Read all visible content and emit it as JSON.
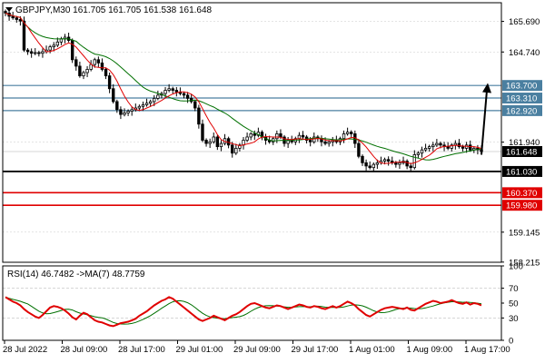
{
  "header": {
    "symbol_line": "GBPJPY,M30  161.705 161.705 161.538 161.648"
  },
  "colors": {
    "background": "#ffffff",
    "frame": "#000000",
    "grid": "#c8c8c8",
    "candle": "#000000",
    "ma_fast": "#e00000",
    "ma_slow": "#007000",
    "resistance": "#4a7fa0",
    "support_black": "#000000",
    "support_red": "#e00000",
    "rsi": "#e00000",
    "rsi_ma": "#007000",
    "current_price_bg": "#000000"
  },
  "chart_data": [
    {
      "type": "candlestick",
      "title": "GBPJPY,M30",
      "ohlc_readout": {
        "open": 161.705,
        "high": 161.705,
        "low": 161.538,
        "close": 161.648
      },
      "ylim": [
        158.21,
        166.27
      ],
      "y_ticks": [
        165.69,
        164.74,
        161.94,
        159.145,
        158.215
      ],
      "y_tick_labels": [
        "165.690",
        "164.740",
        "161.940",
        "159.145",
        "158.215"
      ],
      "current_price": {
        "value": 161.648,
        "label": "161.648"
      },
      "x_ticks": [
        "28 Jul 2022",
        "28 Jul 09:00",
        "28 Jul 17:00",
        "29 Jul 01:00",
        "29 Jul 09:00",
        "29 Jul 17:00",
        "1 Aug 01:00",
        "1 Aug 09:00",
        "1 Aug 17:00"
      ],
      "levels": [
        {
          "value": 163.7,
          "label": "163.700",
          "kind": "resistance"
        },
        {
          "value": 163.31,
          "label": "163.310",
          "kind": "resistance"
        },
        {
          "value": 162.92,
          "label": "162.920",
          "kind": "resistance"
        },
        {
          "value": 161.03,
          "label": "161.030",
          "kind": "support"
        },
        {
          "value": 160.37,
          "label": "160.370",
          "kind": "support-red"
        },
        {
          "value": 159.98,
          "label": "159.980",
          "kind": "support-red"
        }
      ],
      "forecast_arrow": {
        "from_bar": 128,
        "from": 161.55,
        "to": 163.72,
        "direction": "up"
      },
      "closes": [
        165.95,
        165.85,
        165.8,
        165.75,
        165.7,
        164.8,
        164.75,
        164.7,
        164.72,
        164.7,
        164.75,
        164.8,
        164.9,
        164.95,
        165.05,
        165.15,
        165.2,
        165.1,
        164.5,
        164.3,
        164.0,
        164.1,
        164.2,
        164.35,
        164.5,
        164.4,
        164.2,
        164.0,
        163.6,
        163.2,
        162.95,
        162.8,
        162.85,
        162.9,
        162.95,
        163.0,
        163.05,
        163.1,
        163.15,
        163.2,
        163.3,
        163.4,
        163.45,
        163.55,
        163.6,
        163.55,
        163.5,
        163.45,
        163.4,
        163.3,
        163.2,
        163.0,
        162.5,
        162.0,
        161.9,
        161.95,
        162.1,
        161.8,
        161.9,
        162.05,
        161.85,
        161.6,
        161.75,
        161.85,
        162.0,
        162.1,
        162.2,
        162.15,
        162.25,
        162.1,
        162.0,
        161.95,
        162.05,
        162.2,
        162.1,
        161.9,
        162.0,
        161.95,
        162.05,
        162.15,
        162.1,
        162.0,
        161.95,
        162.1,
        162.05,
        161.95,
        161.9,
        161.95,
        162.0,
        161.95,
        162.05,
        162.2,
        162.25,
        162.2,
        161.9,
        161.5,
        161.3,
        161.2,
        161.15,
        161.25,
        161.3,
        161.35,
        161.4,
        161.35,
        161.3,
        161.25,
        161.3,
        161.35,
        161.2,
        161.15,
        161.55,
        161.6,
        161.7,
        161.75,
        161.8,
        161.85,
        161.9,
        161.85,
        161.8,
        161.75,
        161.85,
        161.9,
        161.8,
        161.75,
        161.85,
        161.7,
        161.75,
        161.7,
        161.65
      ]
    },
    {
      "type": "line",
      "title": "RSI(14) 46.7482 ->MA(7) 48.7759",
      "ylim": [
        0,
        100
      ],
      "y_ticks": [
        100,
        70,
        50,
        30,
        0
      ],
      "y_tick_labels": [
        "100",
        "70",
        "50",
        "30",
        "0"
      ],
      "levels": [
        70,
        30
      ],
      "series": [
        {
          "name": "RSI(14)",
          "last": 46.7482,
          "values": [
            58,
            55,
            52,
            50,
            47,
            42,
            38,
            35,
            32,
            30,
            34,
            39,
            44,
            46,
            45,
            43,
            40,
            36,
            31,
            28,
            33,
            37,
            35,
            31,
            27,
            25,
            24,
            22,
            20,
            19,
            21,
            23,
            24,
            25,
            27,
            29,
            33,
            36,
            39,
            43,
            47,
            50,
            53,
            55,
            58,
            56,
            52,
            48,
            44,
            40,
            36,
            32,
            28,
            26,
            28,
            30,
            33,
            31,
            29,
            27,
            30,
            33,
            35,
            38,
            42,
            46,
            49,
            50,
            48,
            46,
            44,
            43,
            45,
            47,
            46,
            44,
            42,
            44,
            46,
            48,
            47,
            45,
            44,
            46,
            45,
            43,
            42,
            44,
            46,
            44,
            46,
            49,
            52,
            50,
            47,
            42,
            38,
            34,
            32,
            35,
            38,
            41,
            43,
            44,
            45,
            44,
            43,
            42,
            44,
            41,
            40,
            43,
            46,
            49,
            51,
            53,
            52,
            50,
            51,
            52,
            54,
            52,
            50,
            49,
            51,
            48,
            50,
            49,
            47
          ]
        },
        {
          "name": "MA(7)",
          "last": 48.7759
        }
      ]
    }
  ]
}
